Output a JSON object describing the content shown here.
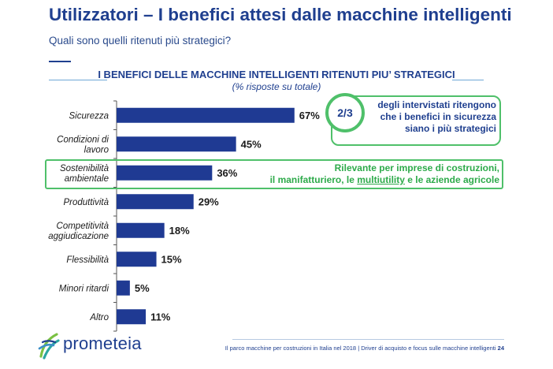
{
  "header": {
    "title": "Utilizzatori – I benefici attesi dalle macchine intelligenti",
    "subtitle": "Quali sono quelli ritenuti più strategici?"
  },
  "chart_data": {
    "type": "bar",
    "orientation": "horizontal",
    "title": "I BENEFICI DELLE MACCHINE INTELLIGENTI RITENUTI PIU’ STRATEGICI",
    "subtitle": "(% risposte su totale)",
    "categories": [
      [
        "Sicurezza"
      ],
      [
        "Condizioni di",
        "lavoro"
      ],
      [
        "Sostenibilità",
        "ambientale"
      ],
      [
        "Produttività"
      ],
      [
        "Competitività",
        "aggiudicazione"
      ],
      [
        "Flessibilità"
      ],
      [
        "Minori ritardi"
      ],
      [
        "Altro"
      ]
    ],
    "values": [
      67,
      45,
      36,
      29,
      18,
      15,
      5,
      11
    ],
    "value_labels": [
      "67%",
      "45%",
      "36%",
      "29%",
      "18%",
      "15%",
      "5%",
      "11%"
    ],
    "xlim": [
      0,
      100
    ],
    "bar_color": "#1f3a93",
    "grid": false,
    "highlighted_category": "Sostenibilità ambientale"
  },
  "callout": {
    "badge": "2/3",
    "lines": [
      "degli intervistati ritengono",
      "che i benefici in sicurezza",
      "siano i più strategici"
    ]
  },
  "highlight": {
    "line1": "Rilevante per imprese di costruzioni,",
    "line2_before": "il manifatturiero, le ",
    "line2_underlined": "multiutility",
    "line2_after": " e le aziende agricole"
  },
  "footer": {
    "brand": "prometeia",
    "source": "Il parco macchine per costruzioni in Italia nel 2018 | Driver di acquisto e focus sulle macchine intelligenti",
    "page": "24"
  },
  "colors": {
    "primary": "#1f3f8f",
    "accent_green": "#4fc06a",
    "bar": "#1f3a93"
  }
}
